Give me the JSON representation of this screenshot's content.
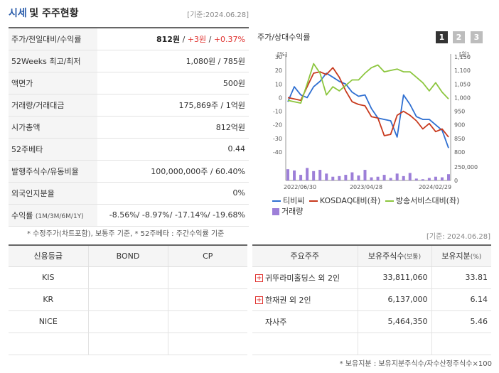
{
  "header": {
    "title_a": "시세",
    "title_b": "및 주주현황",
    "base_date": "[기준:2024.06.28]"
  },
  "quote": {
    "rows": [
      {
        "key": "주가/전일대비/수익률"
      },
      {
        "key": "52Weeks 최고/최저",
        "value": "1,080원 / 785원"
      },
      {
        "key": "액면가",
        "value": "500원"
      },
      {
        "key": "거래량/거래대금",
        "value": "175,869주 / 1억원"
      },
      {
        "key": "시가총액",
        "value": "812억원"
      },
      {
        "key": "52주베타",
        "value": "0.44"
      },
      {
        "key": "발행주식수/유동비율",
        "value": "100,000,000주 / 60.40%"
      },
      {
        "key": "외국인지분율",
        "value": "0%"
      },
      {
        "key": "수익률",
        "key_sub": "(1M/3M/6M/1Y)",
        "value": "-8.56%/ -8.97%/ -17.14%/ -19.68%"
      }
    ],
    "price": "812원",
    "change": "+3원",
    "rate": "+0.37%",
    "sep": " / "
  },
  "note1": "* 수정주가(차트포함), 보통주 기준, * 52주베타 : 주간수익률 기준",
  "chart": {
    "label": "주가/상대수익률",
    "pages": [
      "1",
      "2",
      "3"
    ],
    "legend": [
      "티비씨",
      "KOSDAQ대비(좌)",
      "방송서비스대비(좌)",
      "거래량"
    ]
  },
  "colors": {
    "tbc": "#2f6fd1",
    "kosdaq": "#c8391d",
    "broadcast": "#8cc63e",
    "volume": "#9d7fd8"
  },
  "chart_data": {
    "type": "line",
    "x_ticks": [
      "2022/06/30",
      "2023/04/28",
      "2024/02/29"
    ],
    "left_axis": {
      "unit": "[%]",
      "ticks": [
        "30",
        "20",
        "10",
        "0",
        "-10",
        "-20",
        "-30",
        "-40"
      ],
      "range": [
        -40,
        30
      ]
    },
    "right_axis": {
      "unit": "[원]",
      "ticks": [
        "1,150",
        "1,100",
        "1,050",
        "1,000",
        "950",
        "900",
        "850",
        "800"
      ],
      "range": [
        800,
        1150
      ]
    },
    "vol_axis": {
      "ticks": [
        "250,000",
        "0"
      ],
      "range": [
        0,
        250000
      ]
    },
    "series": [
      {
        "name": "티비씨",
        "axis": "right",
        "values": [
          985,
          1040,
          1010,
          1000,
          1040,
          1060,
          1090,
          1075,
          1060,
          1050,
          1020,
          1005,
          1010,
          960,
          925,
          920,
          915,
          855,
          1010,
          975,
          930,
          920,
          920,
          900,
          880,
          815
        ]
      },
      {
        "name": "KOSDAQ대비(좌)",
        "axis": "left",
        "values": [
          0,
          -1,
          -2,
          8,
          18,
          19,
          17,
          22,
          15,
          5,
          -3,
          -5,
          -6,
          -14,
          -15,
          -28,
          -27,
          -13,
          -10,
          -13,
          -17,
          -23,
          -19,
          -25,
          -23,
          -29
        ]
      },
      {
        "name": "방송서비스대비(좌)",
        "axis": "left",
        "values": [
          -2,
          -3,
          -4,
          10,
          25,
          18,
          2,
          8,
          5,
          9,
          13,
          13,
          18,
          22,
          24,
          19,
          20,
          21,
          19,
          19,
          15,
          11,
          5,
          11,
          4,
          -1
        ]
      }
    ],
    "volume": [
      180000,
      160000,
      90000,
      200000,
      150000,
      170000,
      110000,
      60000,
      70000,
      90000,
      130000,
      80000,
      170000,
      50000,
      60000,
      90000,
      40000,
      110000,
      70000,
      120000,
      30000,
      20000,
      40000,
      60000,
      50000,
      100000
    ]
  },
  "base_date2": "[기준: 2024.06.28]",
  "credit": {
    "headers": [
      "신용등급",
      "BOND",
      "CP"
    ],
    "rows": [
      [
        "KIS",
        "",
        ""
      ],
      [
        "KR",
        "",
        ""
      ],
      [
        "NICE",
        "",
        ""
      ],
      [
        "",
        "",
        ""
      ]
    ]
  },
  "holders": {
    "headers": {
      "name": "주요주주",
      "shares": "보유주식수",
      "shares_unit": "(보통)",
      "ratio": "보유지분",
      "ratio_unit": "(%)"
    },
    "rows": [
      {
        "name": "귀뚜라미홀딩스 외 2인",
        "shares": "33,811,060",
        "ratio": "33.81",
        "expand": "+"
      },
      {
        "name": "한재권 외 2인",
        "shares": "6,137,000",
        "ratio": "6.14",
        "expand": "+"
      },
      {
        "name": "자사주",
        "shares": "5,464,350",
        "ratio": "5.46"
      },
      {
        "name": "",
        "shares": "",
        "ratio": ""
      }
    ]
  },
  "note2": "* 보유지분 : 보유지분주식수/자수산정주식수×100"
}
